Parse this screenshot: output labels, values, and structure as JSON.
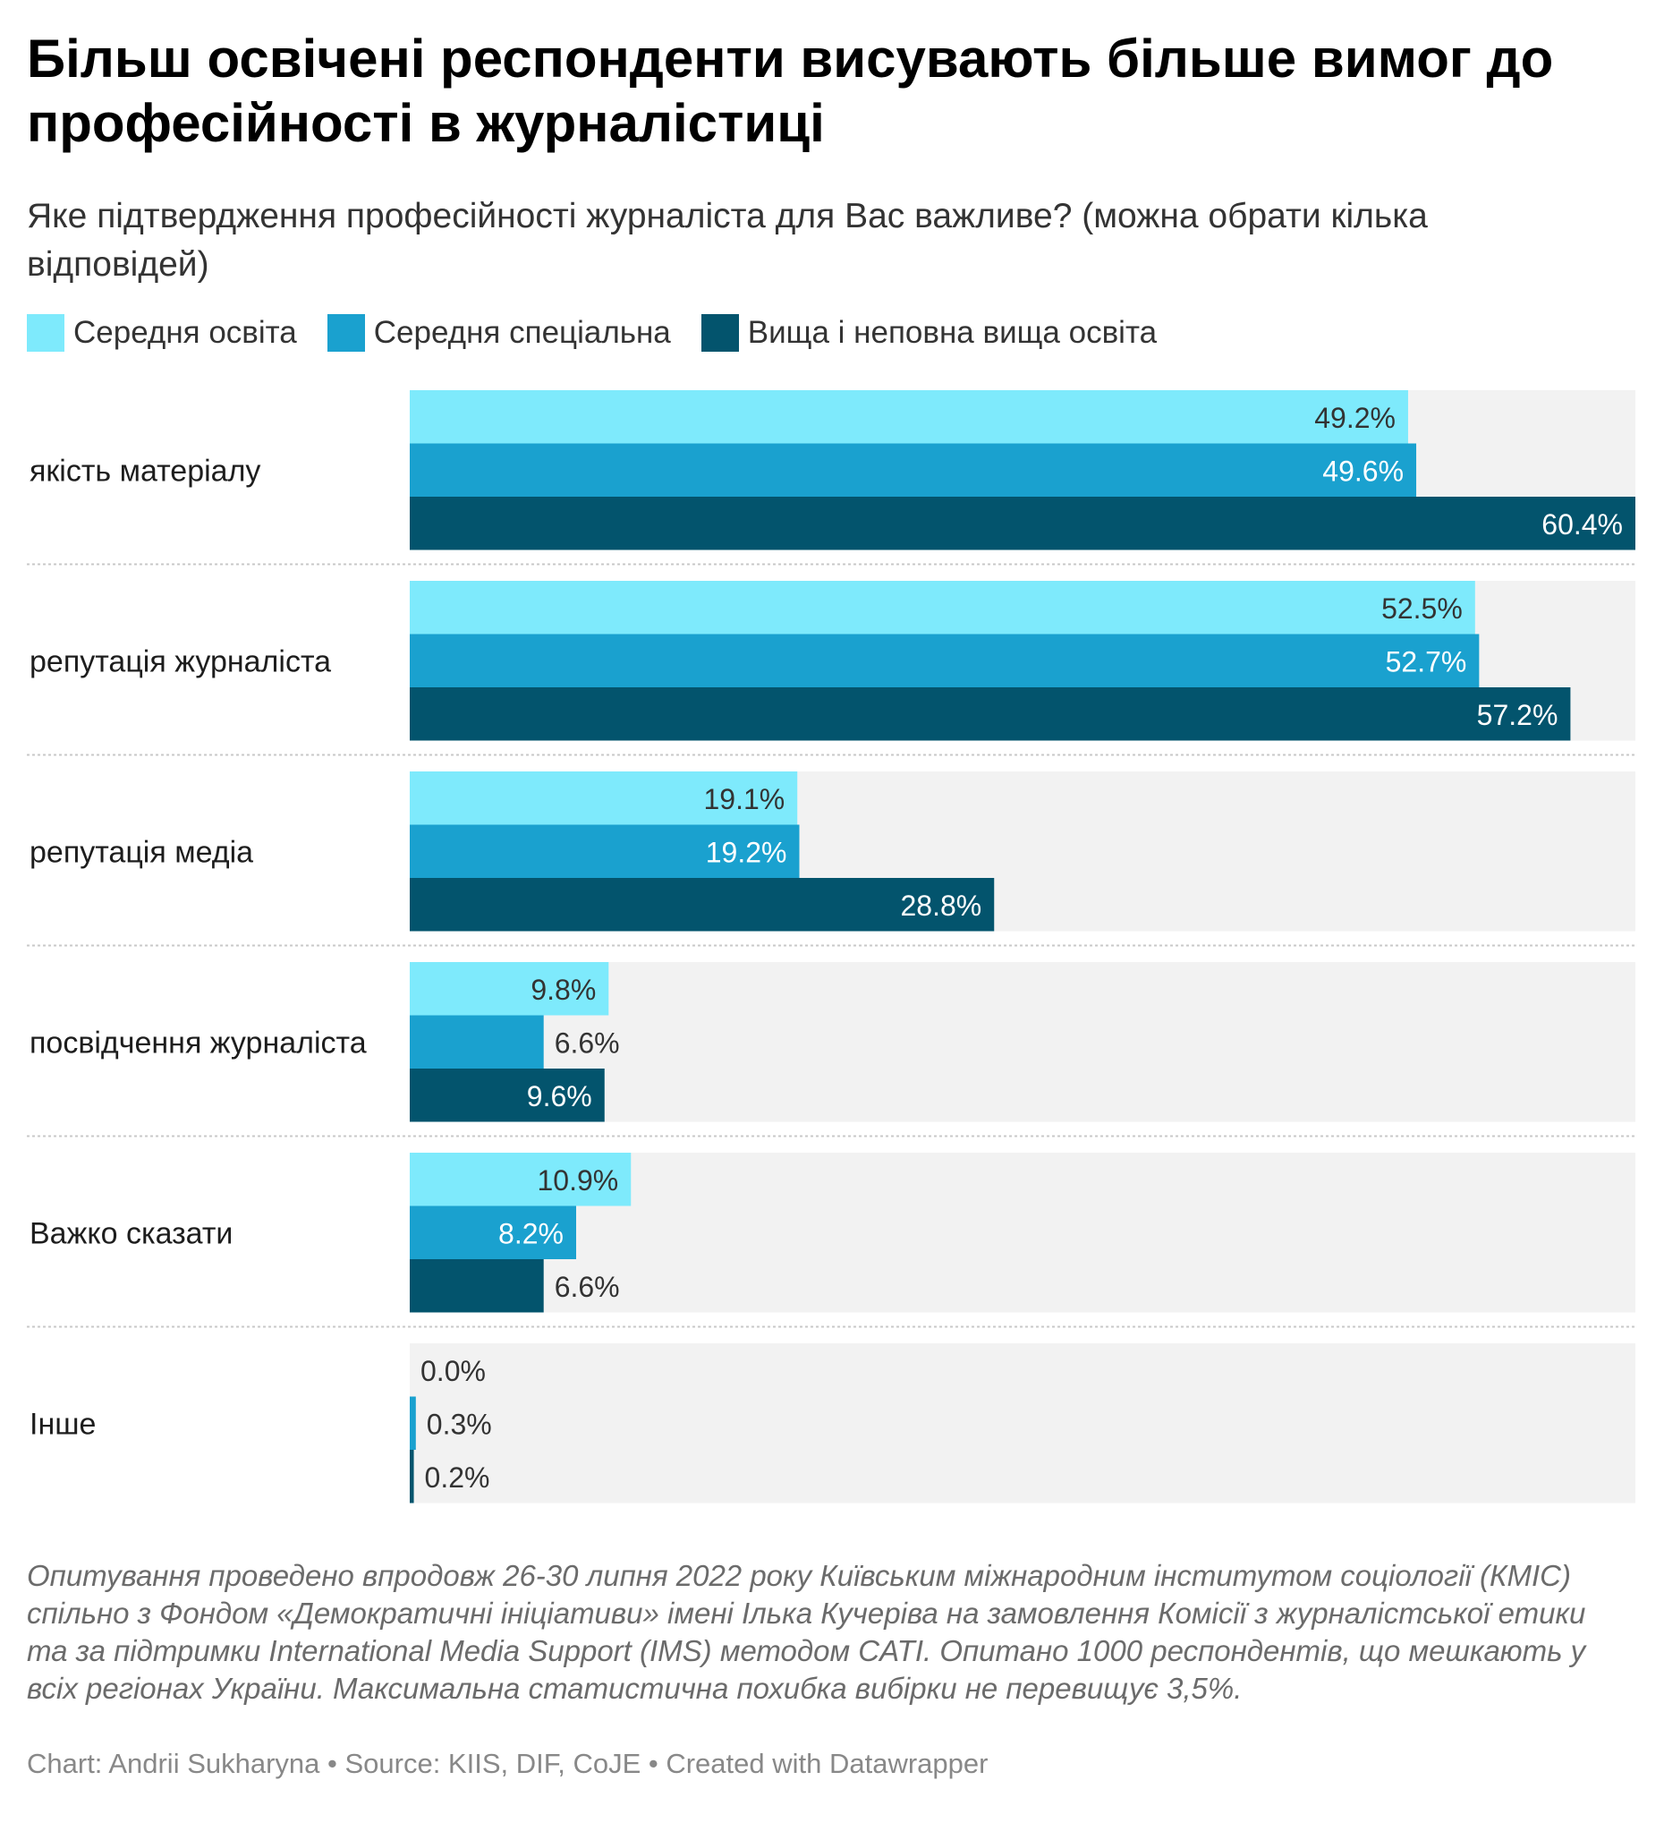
{
  "chart_data": {
    "type": "bar",
    "orientation": "horizontal",
    "title": "Більш освічені респонденти висувають більше вимог до професійності в журналістиці",
    "subtitle": "Яке підтвердження професійності журналіста для Вас важливе? (можна обрати кілька відповідей)",
    "categories": [
      "якість матеріалу",
      "репутація журналіста",
      "репутація медіа",
      "посвідчення журналіста",
      "Важко сказати",
      "Інше"
    ],
    "series": [
      {
        "name": "Середня освіта",
        "color": "#7eeafc",
        "label_color": "#333333",
        "values": [
          49.2,
          52.5,
          19.1,
          9.8,
          10.9,
          0.0
        ]
      },
      {
        "name": "Середня спеціальна",
        "color": "#1aa1cf",
        "label_color": "#ffffff",
        "values": [
          49.6,
          52.7,
          19.2,
          6.6,
          8.2,
          0.3
        ]
      },
      {
        "name": "Вища і неповна вища освіта",
        "color": "#03546d",
        "label_color": "#ffffff",
        "values": [
          60.4,
          57.2,
          28.8,
          9.6,
          6.6,
          0.2
        ]
      }
    ],
    "value_suffix": "%",
    "xlim": [
      0,
      60.4
    ],
    "legend_position": "top-left",
    "background_bar_color": "#f2f2f2",
    "notes": "Опитування проведено впродовж 26-30 липня 2022 року Київським міжнародним інститутом соціології (КМІС) спільно з Фондом «Демократичні ініціативи» імені Ілька Кучеріва на замовлення Комісії з журналістської етики та за підтримки International Media Support (IMS) методом CATI. Опитано 1000 респондентів, що мешкають у всіх регіонах України. Максимальна статистична похибка вибірки не перевищує 3,5%.",
    "footer": "Chart: Andrii Sukharyna • Source: KIIS, DIF, CoJE • Created with Datawrapper"
  }
}
